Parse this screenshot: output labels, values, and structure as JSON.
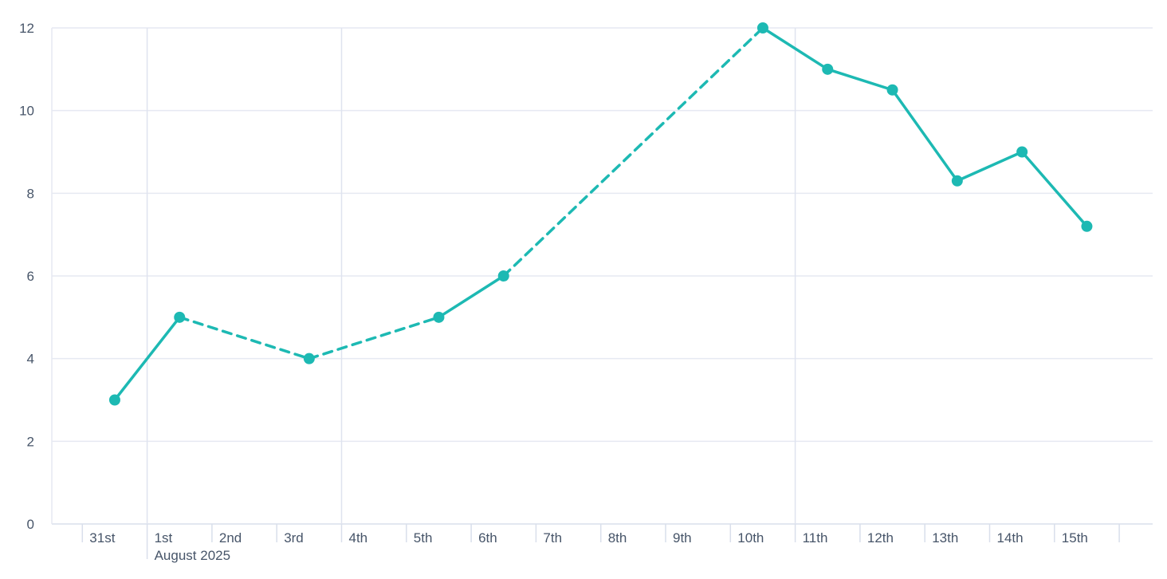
{
  "chart_data": {
    "type": "line",
    "title": "",
    "x_axis": {
      "tick_labels": [
        "31st",
        "1st",
        "2nd",
        "3rd",
        "4th",
        "5th",
        "6th",
        "7th",
        "8th",
        "9th",
        "10th",
        "11th",
        "12th",
        "13th",
        "14th",
        "15th"
      ],
      "month_label": "August 2025",
      "month_label_under": "1st",
      "month_boundary_tick": "1st",
      "week_boundary_gridlines_at": [
        "1st",
        "4th",
        "11th"
      ]
    },
    "y_axis": {
      "tick_labels": [
        0,
        2,
        4,
        6,
        8,
        10,
        12
      ],
      "range": [
        0,
        12
      ]
    },
    "grid": {
      "horizontal": true,
      "vertical": "week-and-month-boundaries"
    },
    "legend": false,
    "series": [
      {
        "name": "daily-values",
        "color": "#1db9b3",
        "marker": "circle",
        "points": [
          {
            "x": "31st",
            "y": 3
          },
          {
            "x": "1st",
            "y": 5
          },
          {
            "x": "3rd",
            "y": 4
          },
          {
            "x": "5th",
            "y": 5
          },
          {
            "x": "6th",
            "y": 6
          },
          {
            "x": "10th",
            "y": 12
          },
          {
            "x": "11th",
            "y": 11
          },
          {
            "x": "12th",
            "y": 10.5
          },
          {
            "x": "13th",
            "y": 8.3
          },
          {
            "x": "14th",
            "y": 9
          },
          {
            "x": "15th",
            "y": 7.2
          }
        ],
        "segment_styles": [
          "solid",
          "dashed",
          "dashed",
          "solid",
          "dashed",
          "solid",
          "solid",
          "solid",
          "solid",
          "solid"
        ]
      }
    ]
  },
  "colors": {
    "accent": "#1db9b3",
    "axis_text": "#475569",
    "gridline": "#e6e9f2",
    "vertical_gridline": "#dfe3ef",
    "axis_line": "#d9dfeb",
    "background": "#ffffff"
  }
}
